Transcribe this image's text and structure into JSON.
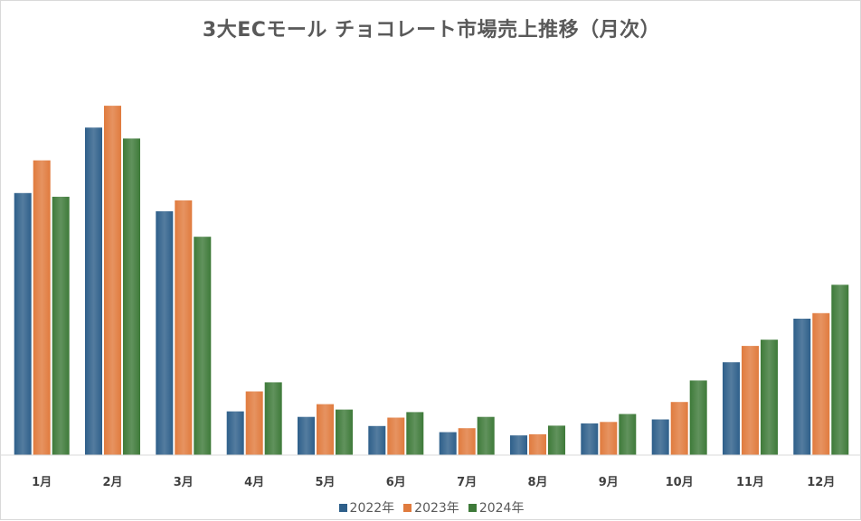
{
  "chart_data": {
    "type": "bar",
    "title": "3大ECモール チョコレート市場売上推移（月次）",
    "xlabel": "",
    "ylabel": "",
    "categories": [
      "1月",
      "2月",
      "3月",
      "4月",
      "5月",
      "6月",
      "7月",
      "8月",
      "9月",
      "10月",
      "11月",
      "12月"
    ],
    "series": [
      {
        "name": "2022年",
        "color": "#2e5f8a",
        "values": [
          72,
          90,
          67,
          12,
          10.5,
          8,
          6.3,
          5.4,
          8.7,
          9.8,
          25.5,
          37.5
        ]
      },
      {
        "name": "2023年",
        "color": "#e07b3e",
        "values": [
          81,
          96,
          70,
          17.5,
          14,
          10.3,
          7.4,
          5.7,
          9.1,
          14.6,
          30,
          39
        ]
      },
      {
        "name": "2024年",
        "color": "#3e7a39",
        "values": [
          71,
          87,
          60,
          20,
          12.5,
          11.8,
          10.5,
          8.1,
          11.3,
          20.5,
          31.7,
          46.8
        ]
      }
    ],
    "ylim": [
      0,
      100
    ],
    "grid": false,
    "legend_position": "bottom"
  }
}
